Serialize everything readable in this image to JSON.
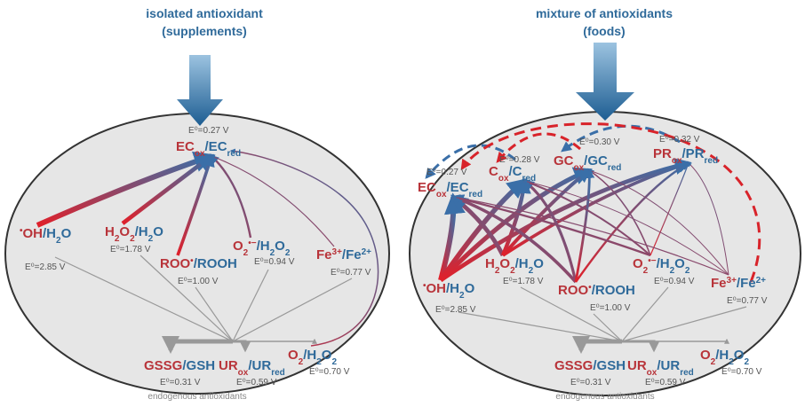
{
  "panels": [
    {
      "title": [
        "isolated antioxidant",
        "(supplements)"
      ],
      "antioxidants": [
        {
          "label": [
            {
              "text": "EC",
              "color": "#b8343a"
            },
            {
              "text": "ox",
              "color": "#b8343a",
              "shift": "sub"
            },
            {
              "text": "/EC",
              "color": "#2f6a9a"
            },
            {
              "text": "red",
              "color": "#2f6a9a",
              "shift": "sub"
            }
          ],
          "potential": "E⁰=0.27 V"
        }
      ],
      "oxidants": [
        {
          "label": [
            {
              "text": "•",
              "color": "#b8343a",
              "shift": "super"
            },
            {
              "text": "OH",
              "color": "#b8343a"
            },
            {
              "text": "/H",
              "color": "#2f6a9a"
            },
            {
              "text": "2",
              "color": "#2f6a9a",
              "shift": "sub"
            },
            {
              "text": "O",
              "color": "#2f6a9a"
            }
          ],
          "potential": "E⁰=2.85 V"
        },
        {
          "label": [
            {
              "text": "H",
              "color": "#b8343a"
            },
            {
              "text": "2",
              "color": "#b8343a",
              "shift": "sub"
            },
            {
              "text": "O",
              "color": "#b8343a"
            },
            {
              "text": "2",
              "color": "#b8343a",
              "shift": "sub"
            },
            {
              "text": "/H",
              "color": "#2f6a9a"
            },
            {
              "text": "2",
              "color": "#2f6a9a",
              "shift": "sub"
            },
            {
              "text": "O",
              "color": "#2f6a9a"
            }
          ],
          "potential": "E⁰=1.78 V"
        },
        {
          "label": [
            {
              "text": "ROO",
              "color": "#b8343a"
            },
            {
              "text": "•",
              "color": "#b8343a",
              "shift": "super"
            },
            {
              "text": "/ROOH",
              "color": "#2f6a9a"
            }
          ],
          "potential": "E⁰=1.00 V"
        },
        {
          "label": [
            {
              "text": "O",
              "color": "#b8343a"
            },
            {
              "text": "2",
              "color": "#b8343a",
              "shift": "sub"
            },
            {
              "text": "•−",
              "color": "#b8343a",
              "shift": "super"
            },
            {
              "text": "/H",
              "color": "#2f6a9a"
            },
            {
              "text": "2",
              "color": "#2f6a9a",
              "shift": "sub"
            },
            {
              "text": "O",
              "color": "#2f6a9a"
            },
            {
              "text": "2",
              "color": "#2f6a9a",
              "shift": "sub"
            }
          ],
          "potential": "E⁰=0.94 V"
        },
        {
          "label": [
            {
              "text": "Fe",
              "color": "#b8343a"
            },
            {
              "text": "3+",
              "color": "#b8343a",
              "shift": "super"
            },
            {
              "text": "/Fe",
              "color": "#2f6a9a"
            },
            {
              "text": "2+",
              "color": "#2f6a9a",
              "shift": "super"
            }
          ],
          "potential": "E⁰=0.77 V"
        }
      ],
      "endogenous": {
        "items": [
          {
            "label": [
              {
                "text": "GSSG",
                "color": "#b8343a"
              },
              {
                "text": "/GSH",
                "color": "#2f6a9a"
              }
            ],
            "potential": "E⁰=0.31 V"
          },
          {
            "label": [
              {
                "text": "UR",
                "color": "#b8343a"
              },
              {
                "text": "ox",
                "color": "#b8343a",
                "shift": "sub"
              },
              {
                "text": "/UR",
                "color": "#2f6a9a"
              },
              {
                "text": "red",
                "color": "#2f6a9a",
                "shift": "sub"
              }
            ],
            "potential": "E⁰=0.59 V"
          },
          {
            "label": [
              {
                "text": "O",
                "color": "#b8343a"
              },
              {
                "text": "2",
                "color": "#b8343a",
                "shift": "sub"
              },
              {
                "text": "/H",
                "color": "#2f6a9a"
              },
              {
                "text": "2",
                "color": "#2f6a9a",
                "shift": "sub"
              },
              {
                "text": "O",
                "color": "#2f6a9a"
              },
              {
                "text": "2",
                "color": "#2f6a9a",
                "shift": "sub"
              }
            ],
            "potential": "E⁰=0.70 V"
          }
        ],
        "caption": "endogenous antioxidants"
      }
    },
    {
      "title": [
        "mixture of antioxidants",
        "(foods)"
      ],
      "antioxidants": [
        {
          "label": [
            {
              "text": "EC",
              "color": "#b8343a"
            },
            {
              "text": "ox",
              "color": "#b8343a",
              "shift": "sub"
            },
            {
              "text": "/EC",
              "color": "#2f6a9a"
            },
            {
              "text": "red",
              "color": "#2f6a9a",
              "shift": "sub"
            }
          ],
          "potential": "E⁰=0.27 V"
        },
        {
          "label": [
            {
              "text": "C",
              "color": "#b8343a"
            },
            {
              "text": "ox",
              "color": "#b8343a",
              "shift": "sub"
            },
            {
              "text": "/C",
              "color": "#2f6a9a"
            },
            {
              "text": "red",
              "color": "#2f6a9a",
              "shift": "sub"
            }
          ],
          "potential": "E⁰=0.28 V"
        },
        {
          "label": [
            {
              "text": "GC",
              "color": "#b8343a"
            },
            {
              "text": "ox",
              "color": "#b8343a",
              "shift": "sub"
            },
            {
              "text": "/GC",
              "color": "#2f6a9a"
            },
            {
              "text": "red",
              "color": "#2f6a9a",
              "shift": "sub"
            }
          ],
          "potential": "E⁰=0.30 V"
        },
        {
          "label": [
            {
              "text": "PR",
              "color": "#b8343a"
            },
            {
              "text": "ox",
              "color": "#b8343a",
              "shift": "sub"
            },
            {
              "text": "/PR",
              "color": "#2f6a9a"
            },
            {
              "text": "red",
              "color": "#2f6a9a",
              "shift": "sub"
            }
          ],
          "potential": "E⁰=0.32 V"
        }
      ],
      "oxidants": [
        {
          "label": [
            {
              "text": "•",
              "color": "#b8343a",
              "shift": "super"
            },
            {
              "text": "OH",
              "color": "#b8343a"
            },
            {
              "text": "/H",
              "color": "#2f6a9a"
            },
            {
              "text": "2",
              "color": "#2f6a9a",
              "shift": "sub"
            },
            {
              "text": "O",
              "color": "#2f6a9a"
            }
          ],
          "potential": "E⁰=2.85 V"
        },
        {
          "label": [
            {
              "text": "H",
              "color": "#b8343a"
            },
            {
              "text": "2",
              "color": "#b8343a",
              "shift": "sub"
            },
            {
              "text": "O",
              "color": "#b8343a"
            },
            {
              "text": "2",
              "color": "#b8343a",
              "shift": "sub"
            },
            {
              "text": "/H",
              "color": "#2f6a9a"
            },
            {
              "text": "2",
              "color": "#2f6a9a",
              "shift": "sub"
            },
            {
              "text": "O",
              "color": "#2f6a9a"
            }
          ],
          "potential": "E⁰=1.78 V"
        },
        {
          "label": [
            {
              "text": "ROO",
              "color": "#b8343a"
            },
            {
              "text": "•",
              "color": "#b8343a",
              "shift": "super"
            },
            {
              "text": "/ROOH",
              "color": "#2f6a9a"
            }
          ],
          "potential": "E⁰=1.00 V"
        },
        {
          "label": [
            {
              "text": "O",
              "color": "#b8343a"
            },
            {
              "text": "2",
              "color": "#b8343a",
              "shift": "sub"
            },
            {
              "text": "•−",
              "color": "#b8343a",
              "shift": "super"
            },
            {
              "text": "/H",
              "color": "#2f6a9a"
            },
            {
              "text": "2",
              "color": "#2f6a9a",
              "shift": "sub"
            },
            {
              "text": "O",
              "color": "#2f6a9a"
            },
            {
              "text": "2",
              "color": "#2f6a9a",
              "shift": "sub"
            }
          ],
          "potential": "E⁰=0.94 V"
        },
        {
          "label": [
            {
              "text": "Fe",
              "color": "#b8343a"
            },
            {
              "text": "3+",
              "color": "#b8343a",
              "shift": "super"
            },
            {
              "text": "/Fe",
              "color": "#2f6a9a"
            },
            {
              "text": "2+",
              "color": "#2f6a9a",
              "shift": "super"
            }
          ],
          "potential": "E⁰=0.77 V"
        }
      ],
      "endogenous": {
        "items": [
          {
            "label": [
              {
                "text": "GSSG",
                "color": "#b8343a"
              },
              {
                "text": "/GSH",
                "color": "#2f6a9a"
              }
            ],
            "potential": "E⁰=0.31 V"
          },
          {
            "label": [
              {
                "text": "UR",
                "color": "#b8343a"
              },
              {
                "text": "ox",
                "color": "#b8343a",
                "shift": "sub"
              },
              {
                "text": "/UR",
                "color": "#2f6a9a"
              },
              {
                "text": "red",
                "color": "#2f6a9a",
                "shift": "sub"
              }
            ],
            "potential": "E⁰=0.59 V"
          },
          {
            "label": [
              {
                "text": "O",
                "color": "#b8343a"
              },
              {
                "text": "2",
                "color": "#b8343a",
                "shift": "sub"
              },
              {
                "text": "/H",
                "color": "#2f6a9a"
              },
              {
                "text": "2",
                "color": "#2f6a9a",
                "shift": "sub"
              },
              {
                "text": "O",
                "color": "#2f6a9a"
              },
              {
                "text": "2",
                "color": "#2f6a9a",
                "shift": "sub"
              }
            ],
            "potential": "E⁰=0.70 V"
          }
        ],
        "caption": "endogenous antioxidants"
      }
    }
  ]
}
